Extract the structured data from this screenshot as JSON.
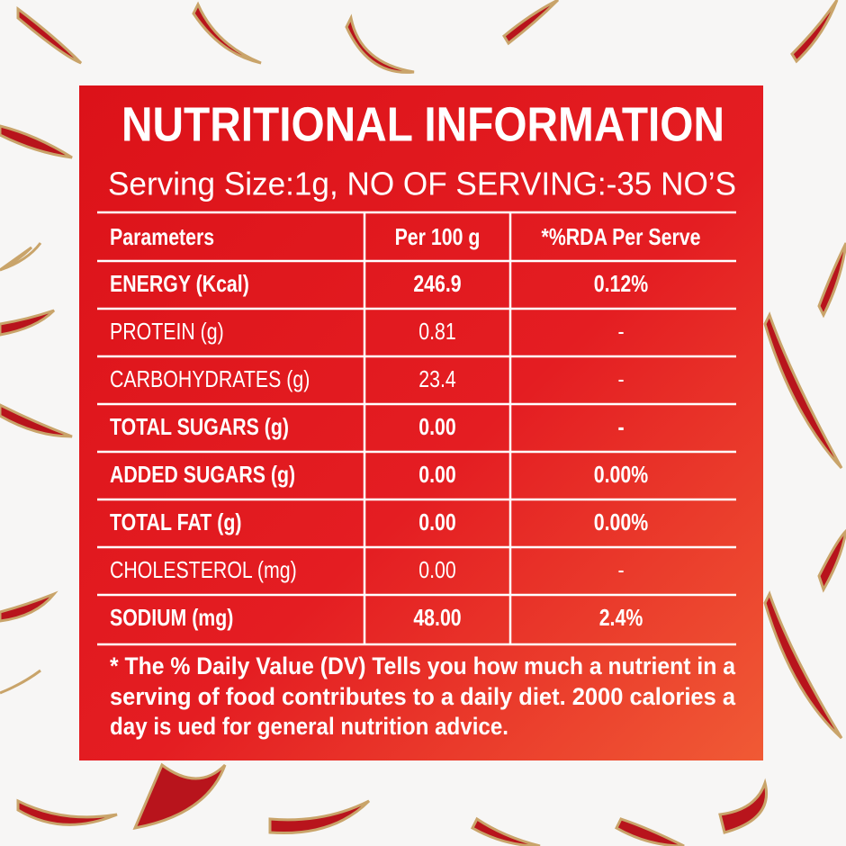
{
  "title": "NUTRITIONAL INFORMATION",
  "serving": "Serving Size:1g, NO OF SERVING:-35 NO’S",
  "table": {
    "header": [
      "Parameters",
      "Per 100 g",
      "*%RDA Per Serve"
    ],
    "rows": [
      [
        "ENERGY (Kcal)",
        "246.9",
        "0.12%"
      ],
      [
        "PROTEIN (g)",
        "0.81",
        "-"
      ],
      [
        "CARBOHYDRATES (g)",
        "23.4",
        "-"
      ],
      [
        "TOTAL SUGARS (g)",
        "0.00",
        "-"
      ],
      [
        "ADDED SUGARS (g)",
        "0.00",
        "0.00%"
      ],
      [
        "TOTAL FAT (g)",
        "0.00",
        "0.00%"
      ],
      [
        "CHOLESTEROL (mg)",
        "0.00",
        "-"
      ],
      [
        "SODIUM (mg)",
        "48.00",
        "2.4%"
      ]
    ]
  },
  "footnote": [
    "* The % Daily Value (DV) Tells you how much a nutrient in a",
    "serving of food contributes to a daily diet. 2000 calories a",
    "day is ued for general nutrition advice."
  ]
}
